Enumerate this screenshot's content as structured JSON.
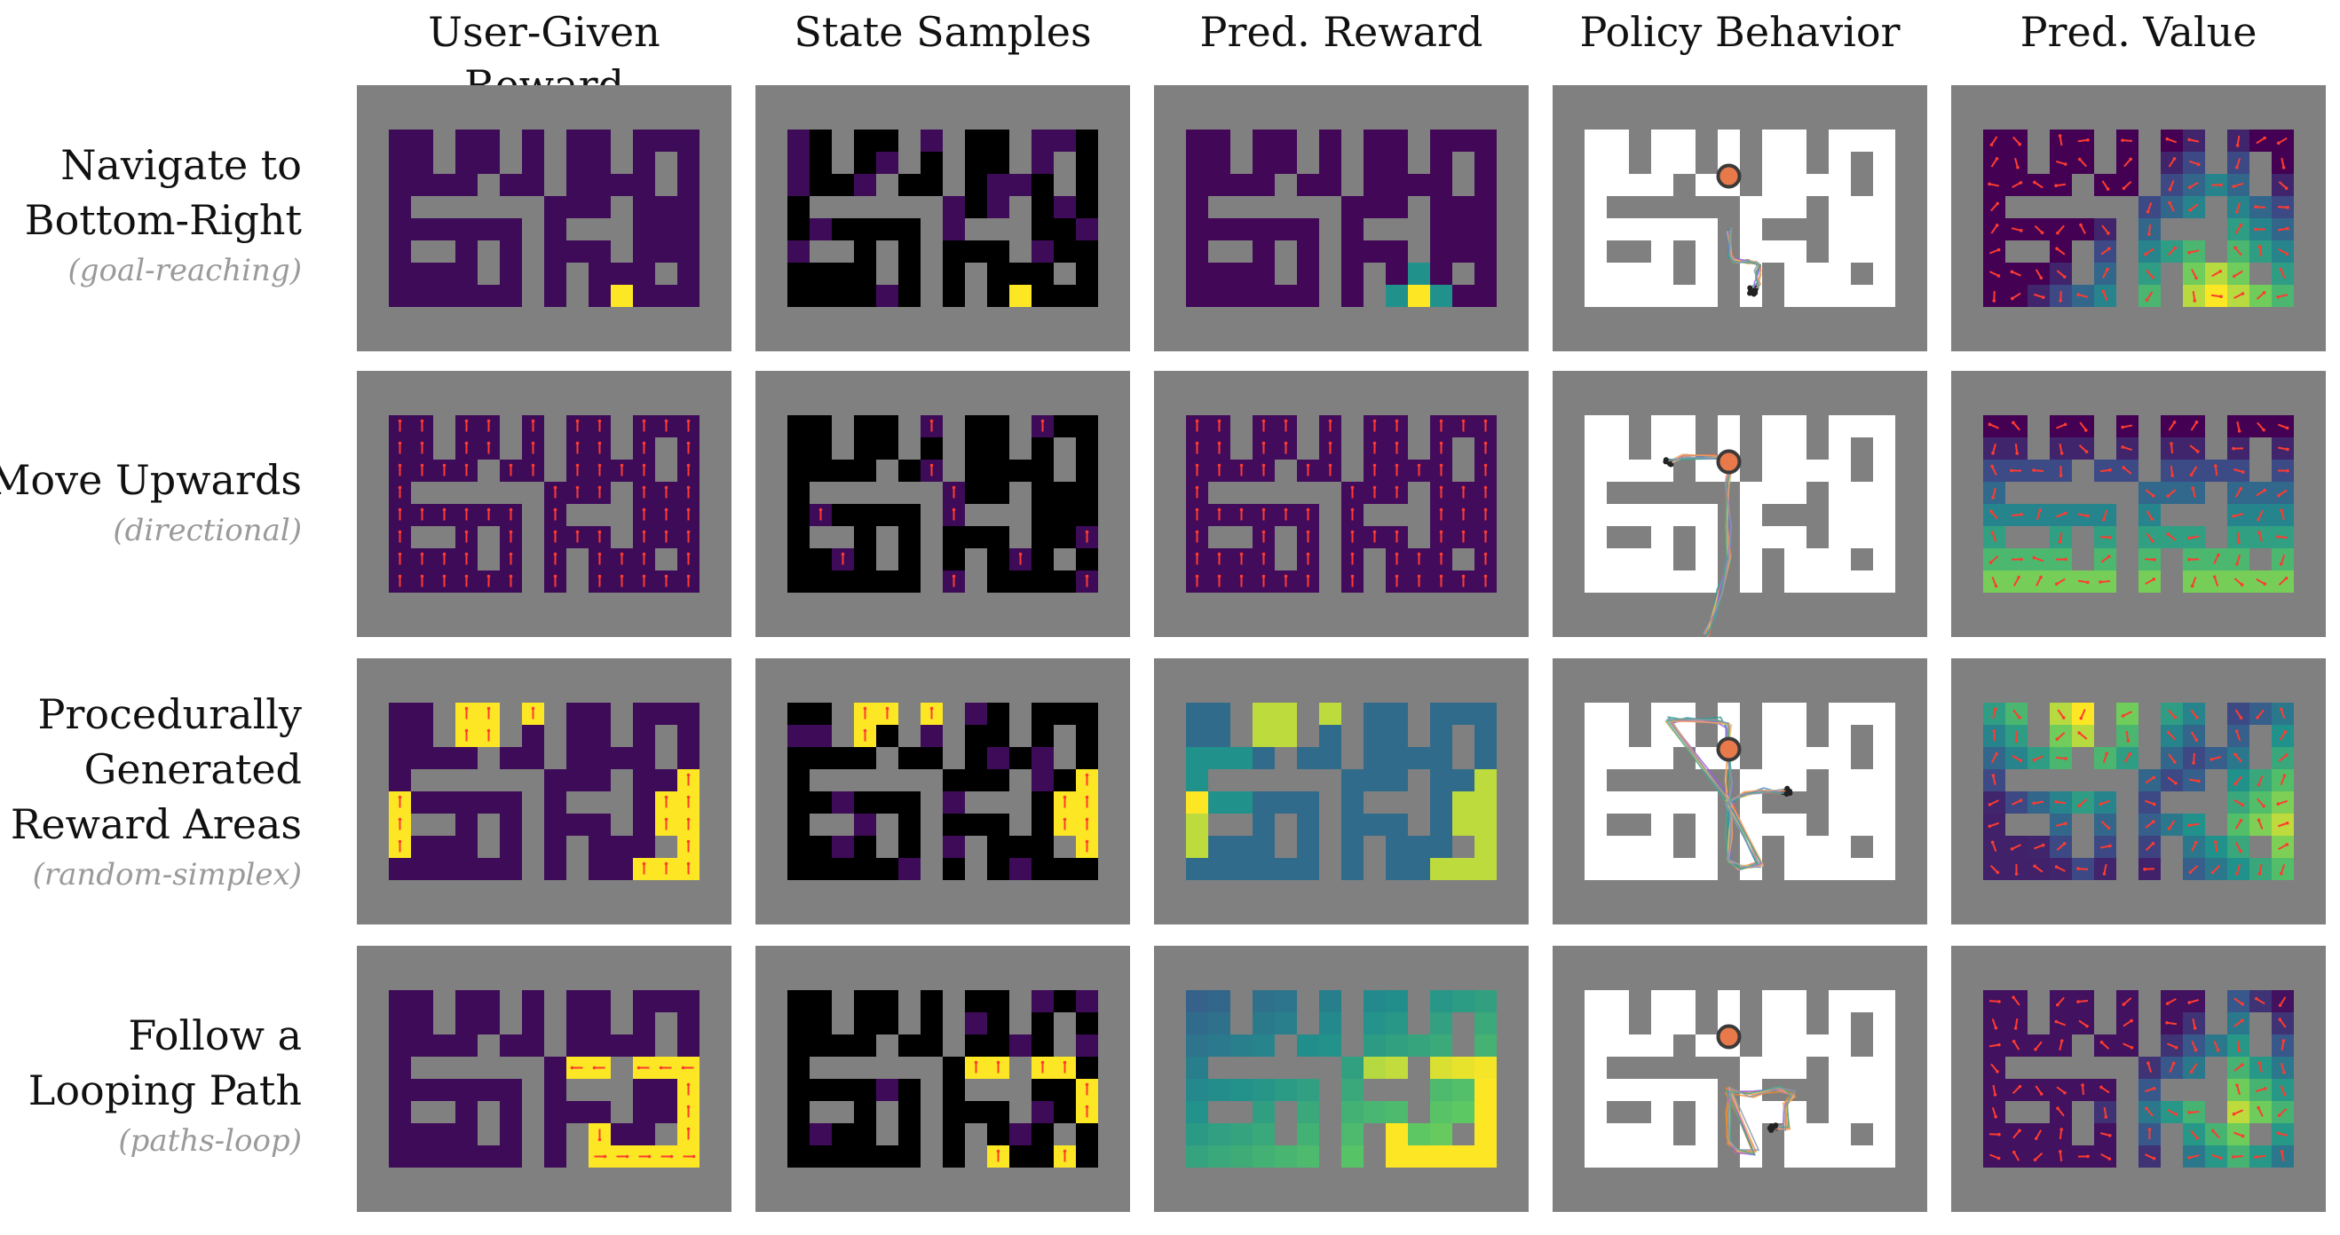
{
  "columns": {
    "c0": "User-Given Reward",
    "c1": "State Samples",
    "c2": "Pred. Reward",
    "c3": "Policy Behavior",
    "c4": "Pred. Value"
  },
  "rows": {
    "r0": {
      "line1": "Navigate to",
      "line2": "Bottom-Right",
      "line3": "",
      "sub": "(goal-reaching)",
      "task": "goal"
    },
    "r1": {
      "line1": "Move Upwards",
      "line2": "",
      "line3": "",
      "sub": "(directional)",
      "task": "up"
    },
    "r2": {
      "line1": "Procedurally",
      "line2": "Generated",
      "line3": "Reward Areas",
      "sub": "(random-simplex)",
      "task": "simplex"
    },
    "r3": {
      "line1": "Follow a",
      "line2": "Looping Path",
      "line3": "",
      "sub": "(paths-loop)",
      "task": "loop"
    }
  },
  "maze": [
    "################",
    "#..#..#.#..#...#",
    "#..#..#.#..#.#.#",
    "#....#..#....#.#",
    "#.######...#...#",
    "#......#.###...#",
    "#.##.#.#...#...#",
    "#....#.#.#...#.#",
    "#......#.#.....#",
    "################"
  ],
  "colors": {
    "frame": "#808080",
    "wall": "#808080",
    "purple": "#3e0b59",
    "yellow": "#fde725",
    "black": "#000000",
    "white": "#ffffff",
    "arrow": "#ff3b30",
    "agent": "#e8794a"
  }
}
